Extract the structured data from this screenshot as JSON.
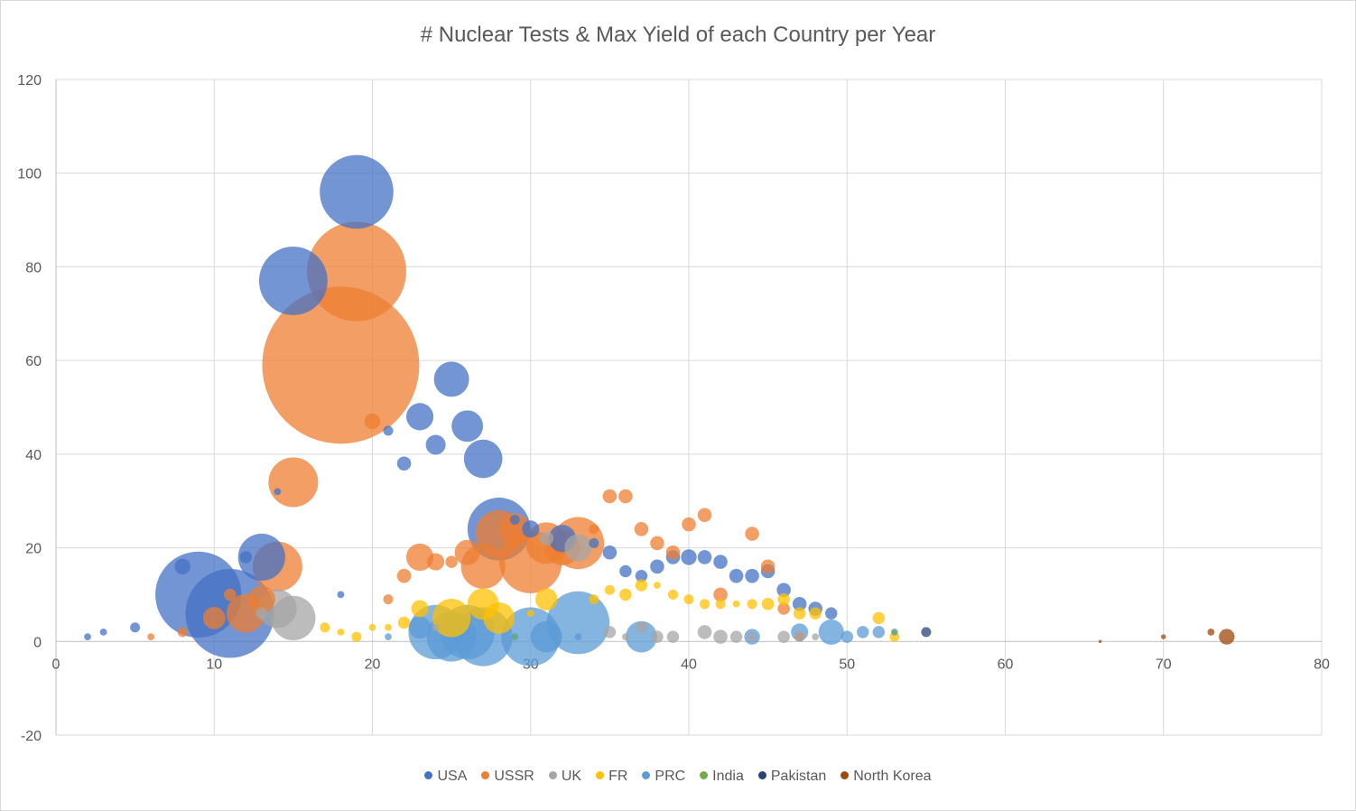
{
  "chart_data": {
    "type": "bubble",
    "title": "# Nuclear Tests & Max Yield of each Country per Year",
    "xlabel": "",
    "ylabel": "",
    "xlim": [
      0,
      80
    ],
    "ylim": [
      -20,
      120
    ],
    "x_ticks": [
      "0",
      "10",
      "20",
      "30",
      "40",
      "50",
      "60",
      "70",
      "80"
    ],
    "y_ticks": [
      "-20",
      "0",
      "20",
      "40",
      "60",
      "80",
      "100",
      "120"
    ],
    "grid": true,
    "legend_position": "bottom",
    "series": [
      {
        "name": "USA",
        "color": "#4472C4",
        "points": [
          {
            "x": 2,
            "y": 1,
            "size": 0.1
          },
          {
            "x": 3,
            "y": 2,
            "size": 0.1
          },
          {
            "x": 5,
            "y": 3,
            "size": 0.2
          },
          {
            "x": 8,
            "y": 16,
            "size": 0.5
          },
          {
            "x": 9,
            "y": 10,
            "size": 15
          },
          {
            "x": 11,
            "y": 6,
            "size": 16
          },
          {
            "x": 12,
            "y": 18,
            "size": 0.3
          },
          {
            "x": 13,
            "y": 18,
            "size": 4.5
          },
          {
            "x": 14,
            "y": 32,
            "size": 0.1
          },
          {
            "x": 15,
            "y": 77,
            "size": 9.5
          },
          {
            "x": 18,
            "y": 10,
            "size": 0.1
          },
          {
            "x": 19,
            "y": 96,
            "size": 11
          },
          {
            "x": 21,
            "y": 45,
            "size": 0.2
          },
          {
            "x": 22,
            "y": 38,
            "size": 0.4
          },
          {
            "x": 23,
            "y": 48,
            "size": 1.5
          },
          {
            "x": 24,
            "y": 42,
            "size": 0.8
          },
          {
            "x": 25,
            "y": 56,
            "size": 2.5
          },
          {
            "x": 26,
            "y": 46,
            "size": 2
          },
          {
            "x": 27,
            "y": 39,
            "size": 3
          },
          {
            "x": 28,
            "y": 24,
            "size": 8
          },
          {
            "x": 29,
            "y": 26,
            "size": 0.2
          },
          {
            "x": 30,
            "y": 24,
            "size": 0.6
          },
          {
            "x": 32,
            "y": 22,
            "size": 1.5
          },
          {
            "x": 34,
            "y": 21,
            "size": 0.2
          },
          {
            "x": 35,
            "y": 19,
            "size": 0.4
          },
          {
            "x": 36,
            "y": 15,
            "size": 0.3
          },
          {
            "x": 37,
            "y": 14,
            "size": 0.3
          },
          {
            "x": 38,
            "y": 16,
            "size": 0.4
          },
          {
            "x": 39,
            "y": 18,
            "size": 0.4
          },
          {
            "x": 40,
            "y": 18,
            "size": 0.5
          },
          {
            "x": 41,
            "y": 18,
            "size": 0.4
          },
          {
            "x": 42,
            "y": 17,
            "size": 0.4
          },
          {
            "x": 43,
            "y": 14,
            "size": 0.4
          },
          {
            "x": 44,
            "y": 14,
            "size": 0.4
          },
          {
            "x": 45,
            "y": 15,
            "size": 0.4
          },
          {
            "x": 46,
            "y": 11,
            "size": 0.4
          },
          {
            "x": 47,
            "y": 8,
            "size": 0.4
          },
          {
            "x": 48,
            "y": 7,
            "size": 0.4
          },
          {
            "x": 49,
            "y": 6,
            "size": 0.3
          }
        ]
      },
      {
        "name": "USSR",
        "color": "#ED7D31",
        "points": [
          {
            "x": 6,
            "y": 1,
            "size": 0.1
          },
          {
            "x": 8,
            "y": 2,
            "size": 0.2
          },
          {
            "x": 10,
            "y": 5,
            "size": 1
          },
          {
            "x": 11,
            "y": 10,
            "size": 0.3
          },
          {
            "x": 12,
            "y": 6,
            "size": 3
          },
          {
            "x": 13,
            "y": 9,
            "size": 1.5
          },
          {
            "x": 14,
            "y": 16,
            "size": 5
          },
          {
            "x": 15,
            "y": 34,
            "size": 5
          },
          {
            "x": 18,
            "y": 59,
            "size": 50
          },
          {
            "x": 19,
            "y": 79,
            "size": 20
          },
          {
            "x": 20,
            "y": 47,
            "size": 0.5
          },
          {
            "x": 21,
            "y": 9,
            "size": 0.2
          },
          {
            "x": 22,
            "y": 14,
            "size": 0.4
          },
          {
            "x": 23,
            "y": 18,
            "size": 1.5
          },
          {
            "x": 24,
            "y": 17,
            "size": 0.6
          },
          {
            "x": 25,
            "y": 17,
            "size": 0.3
          },
          {
            "x": 26,
            "y": 19,
            "size": 1.3
          },
          {
            "x": 27,
            "y": 16,
            "size": 4
          },
          {
            "x": 28,
            "y": 23,
            "size": 4.5
          },
          {
            "x": 29,
            "y": 24,
            "size": 2
          },
          {
            "x": 30,
            "y": 17,
            "size": 8
          },
          {
            "x": 31,
            "y": 21,
            "size": 3.5
          },
          {
            "x": 32,
            "y": 20,
            "size": 2.5
          },
          {
            "x": 33,
            "y": 21,
            "size": 5.5
          },
          {
            "x": 34,
            "y": 24,
            "size": 0.2
          },
          {
            "x": 35,
            "y": 31,
            "size": 0.4
          },
          {
            "x": 36,
            "y": 31,
            "size": 0.4
          },
          {
            "x": 37,
            "y": 24,
            "size": 0.4
          },
          {
            "x": 38,
            "y": 21,
            "size": 0.4
          },
          {
            "x": 39,
            "y": 19,
            "size": 0.4
          },
          {
            "x": 40,
            "y": 25,
            "size": 0.4
          },
          {
            "x": 41,
            "y": 27,
            "size": 0.4
          },
          {
            "x": 42,
            "y": 10,
            "size": 0.4
          },
          {
            "x": 44,
            "y": 23,
            "size": 0.4
          },
          {
            "x": 45,
            "y": 16,
            "size": 0.4
          },
          {
            "x": 46,
            "y": 7,
            "size": 0.3
          },
          {
            "x": 47,
            "y": 1,
            "size": 0.2
          }
        ]
      },
      {
        "name": "UK",
        "color": "#A5A5A5",
        "points": [
          {
            "x": 13,
            "y": 6,
            "size": 0.3
          },
          {
            "x": 14,
            "y": 7,
            "size": 3
          },
          {
            "x": 15,
            "y": 5,
            "size": 4
          },
          {
            "x": 24,
            "y": 3,
            "size": 0.1
          },
          {
            "x": 31,
            "y": 22,
            "size": 0.4
          },
          {
            "x": 33,
            "y": 20,
            "size": 1.5
          },
          {
            "x": 35,
            "y": 2,
            "size": 0.3
          },
          {
            "x": 36,
            "y": 1,
            "size": 0.1
          },
          {
            "x": 37,
            "y": 3,
            "size": 0.3
          },
          {
            "x": 38,
            "y": 1,
            "size": 0.3
          },
          {
            "x": 39,
            "y": 1,
            "size": 0.3
          },
          {
            "x": 41,
            "y": 2,
            "size": 0.4
          },
          {
            "x": 42,
            "y": 1,
            "size": 0.4
          },
          {
            "x": 43,
            "y": 1,
            "size": 0.3
          },
          {
            "x": 44,
            "y": 1,
            "size": 0.2
          },
          {
            "x": 46,
            "y": 1,
            "size": 0.3
          },
          {
            "x": 47,
            "y": 1,
            "size": 0.2
          },
          {
            "x": 48,
            "y": 1,
            "size": 0.1
          }
        ]
      },
      {
        "name": "FR",
        "color": "#FFC000",
        "points": [
          {
            "x": 17,
            "y": 3,
            "size": 0.2
          },
          {
            "x": 18,
            "y": 2,
            "size": 0.1
          },
          {
            "x": 19,
            "y": 1,
            "size": 0.2
          },
          {
            "x": 20,
            "y": 3,
            "size": 0.1
          },
          {
            "x": 21,
            "y": 3,
            "size": 0.1
          },
          {
            "x": 22,
            "y": 4,
            "size": 0.3
          },
          {
            "x": 23,
            "y": 7,
            "size": 0.6
          },
          {
            "x": 25,
            "y": 5,
            "size": 3
          },
          {
            "x": 27,
            "y": 8,
            "size": 2
          },
          {
            "x": 28,
            "y": 5,
            "size": 2
          },
          {
            "x": 30,
            "y": 6,
            "size": 0.1
          },
          {
            "x": 31,
            "y": 9,
            "size": 1
          },
          {
            "x": 34,
            "y": 9,
            "size": 0.2
          },
          {
            "x": 35,
            "y": 11,
            "size": 0.2
          },
          {
            "x": 36,
            "y": 10,
            "size": 0.3
          },
          {
            "x": 37,
            "y": 12,
            "size": 0.3
          },
          {
            "x": 38,
            "y": 12,
            "size": 0.1
          },
          {
            "x": 39,
            "y": 10,
            "size": 0.2
          },
          {
            "x": 40,
            "y": 9,
            "size": 0.2
          },
          {
            "x": 41,
            "y": 8,
            "size": 0.2
          },
          {
            "x": 42,
            "y": 8,
            "size": 0.2
          },
          {
            "x": 43,
            "y": 8,
            "size": 0.1
          },
          {
            "x": 44,
            "y": 8,
            "size": 0.2
          },
          {
            "x": 45,
            "y": 8,
            "size": 0.3
          },
          {
            "x": 46,
            "y": 9,
            "size": 0.3
          },
          {
            "x": 47,
            "y": 6,
            "size": 0.3
          },
          {
            "x": 48,
            "y": 6,
            "size": 0.3
          },
          {
            "x": 52,
            "y": 5,
            "size": 0.3
          },
          {
            "x": 53,
            "y": 1,
            "size": 0.2
          }
        ]
      },
      {
        "name": "PRC",
        "color": "#5B9BD5",
        "points": [
          {
            "x": 21,
            "y": 1,
            "size": 0.1
          },
          {
            "x": 23,
            "y": 3,
            "size": 1
          },
          {
            "x": 24,
            "y": 2,
            "size": 6
          },
          {
            "x": 25,
            "y": 1,
            "size": 5
          },
          {
            "x": 26,
            "y": 2,
            "size": 6
          },
          {
            "x": 27,
            "y": 1,
            "size": 7
          },
          {
            "x": 29,
            "y": 1,
            "size": 0.1
          },
          {
            "x": 30,
            "y": 1,
            "size": 7
          },
          {
            "x": 31,
            "y": 1,
            "size": 2
          },
          {
            "x": 33,
            "y": 4,
            "size": 8
          },
          {
            "x": 33,
            "y": 1,
            "size": 0.1
          },
          {
            "x": 37,
            "y": 1,
            "size": 2
          },
          {
            "x": 44,
            "y": 1,
            "size": 0.5
          },
          {
            "x": 47,
            "y": 2,
            "size": 0.6
          },
          {
            "x": 49,
            "y": 2,
            "size": 1.3
          },
          {
            "x": 50,
            "y": 1,
            "size": 0.3
          },
          {
            "x": 51,
            "y": 2,
            "size": 0.3
          },
          {
            "x": 52,
            "y": 2,
            "size": 0.3
          },
          {
            "x": 53,
            "y": 2,
            "size": 0.1
          }
        ]
      },
      {
        "name": "India",
        "color": "#70AD47",
        "points": [
          {
            "x": 29,
            "y": 1,
            "size": 0.05
          },
          {
            "x": 53,
            "y": 2,
            "size": 0.05
          }
        ]
      },
      {
        "name": "Pakistan",
        "color": "#264478",
        "points": [
          {
            "x": 55,
            "y": 2,
            "size": 0.2
          }
        ]
      },
      {
        "name": "North Korea",
        "color": "#9E480E",
        "points": [
          {
            "x": 66,
            "y": 0,
            "size": 0.02
          },
          {
            "x": 70,
            "y": 1,
            "size": 0.05
          },
          {
            "x": 73,
            "y": 2,
            "size": 0.1
          },
          {
            "x": 74,
            "y": 1,
            "size": 0.5
          }
        ]
      }
    ]
  }
}
